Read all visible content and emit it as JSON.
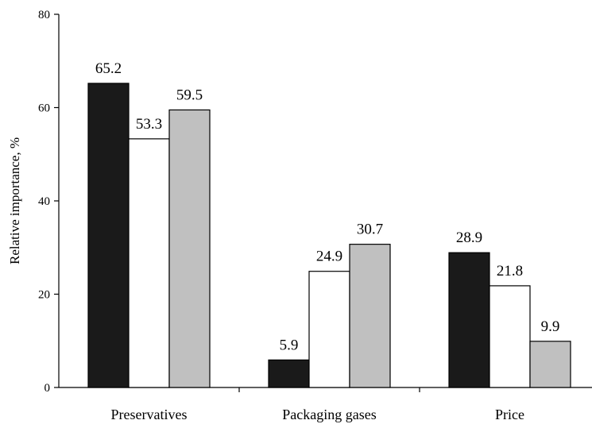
{
  "chart_data": {
    "type": "bar",
    "title": "",
    "xlabel": "",
    "ylabel": "Relative importance, %",
    "ylim": [
      0,
      80
    ],
    "yticks": [
      0,
      20,
      40,
      60,
      80
    ],
    "grid": false,
    "categories": [
      "Preservatives",
      "Packaging gases",
      "Price"
    ],
    "series": [
      {
        "color": "#1a1a1a",
        "values": [
          65.2,
          5.9,
          28.9
        ]
      },
      {
        "color": "#ffffff",
        "values": [
          53.3,
          24.9,
          21.8
        ]
      },
      {
        "color": "#c0c0c0",
        "values": [
          59.5,
          30.7,
          9.9
        ]
      }
    ]
  }
}
